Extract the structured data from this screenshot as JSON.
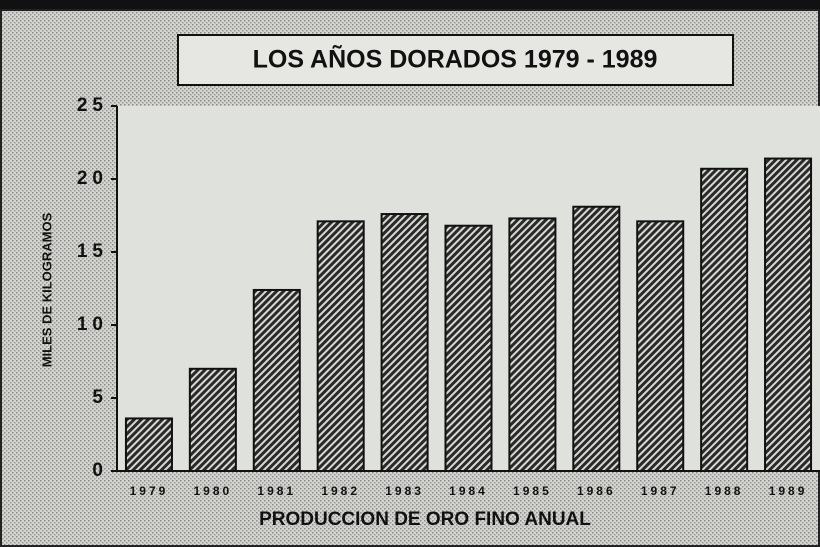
{
  "chart_data": {
    "type": "bar",
    "title": "LOS AÑOS DORADOS 1979 - 1989",
    "x_label": "PRODUCCION DE ORO FINO ANUAL",
    "y_label": "MILES DE KILOGRAMOS",
    "categories": [
      "1979",
      "1980",
      "1981",
      "1982",
      "1983",
      "1984",
      "1985",
      "1986",
      "1987",
      "1988",
      "1989"
    ],
    "values": [
      3.6,
      7.0,
      12.4,
      17.1,
      17.6,
      16.8,
      17.3,
      18.1,
      17.1,
      20.7,
      21.4
    ],
    "color": "#2a2a2a",
    "ylim": [
      0,
      25
    ],
    "yticks": [
      0,
      5,
      10,
      15,
      20,
      25
    ],
    "grid": false
  }
}
